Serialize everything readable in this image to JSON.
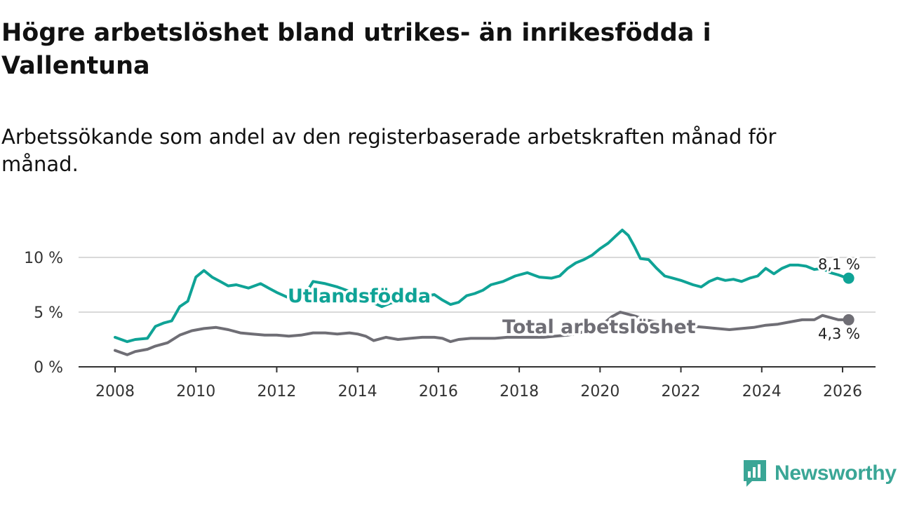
{
  "title": "Högre arbetslöshet bland utrikes- än inrikesfödda i Vallentuna",
  "subtitle": "Arbetssökande som andel av den registerbaserade arbetskraften månad för månad.",
  "logo": {
    "text": "Newsworthy",
    "icon": "newsworthy-logo-icon"
  },
  "colors": {
    "foreign": "#0fa396",
    "total": "#6f6e75",
    "axis": "#333333",
    "grid": "#d9d9d9",
    "brand": "#3aa696"
  },
  "chart_data": {
    "type": "line",
    "ylim": [
      0,
      12.5
    ],
    "xlim": [
      2007.8,
      2027.0
    ],
    "yticks": [
      0,
      5,
      10
    ],
    "ytick_labels": [
      "0 %",
      "5 %",
      "10 %"
    ],
    "xticks": [
      2008,
      2010,
      2012,
      2014,
      2016,
      2018,
      2020,
      2022,
      2024,
      2026
    ],
    "xtick_labels": [
      "2008",
      "2010",
      "2012",
      "2014",
      "2016",
      "2018",
      "2020",
      "2022",
      "2024",
      "2026"
    ],
    "series": [
      {
        "name": "Utlandsfödda",
        "label": "Utlandsfödda",
        "end_label": "8,1 %",
        "x": [
          2008.0,
          2008.3,
          2008.5,
          2008.8,
          2009.0,
          2009.2,
          2009.4,
          2009.6,
          2009.8,
          2010.0,
          2010.2,
          2010.4,
          2010.6,
          2010.8,
          2011.0,
          2011.3,
          2011.6,
          2011.8,
          2012.0,
          2012.3,
          2012.6,
          2012.9,
          2013.2,
          2013.5,
          2013.8,
          2014.0,
          2014.3,
          2014.6,
          2014.8,
          2015.0,
          2015.3,
          2015.6,
          2015.9,
          2016.1,
          2016.3,
          2016.5,
          2016.7,
          2016.9,
          2017.1,
          2017.3,
          2017.6,
          2017.9,
          2018.2,
          2018.5,
          2018.8,
          2019.0,
          2019.2,
          2019.4,
          2019.6,
          2019.8,
          2020.0,
          2020.2,
          2020.4,
          2020.55,
          2020.7,
          2020.85,
          2021.0,
          2021.2,
          2021.4,
          2021.6,
          2021.8,
          2022.0,
          2022.3,
          2022.5,
          2022.7,
          2022.9,
          2023.1,
          2023.3,
          2023.5,
          2023.7,
          2023.9,
          2024.1,
          2024.3,
          2024.5,
          2024.7,
          2024.9,
          2025.1,
          2025.3,
          2025.5,
          2025.7,
          2025.9,
          2026.05,
          2026.15
        ],
        "values": [
          2.7,
          2.3,
          2.5,
          2.6,
          3.7,
          4.0,
          4.2,
          5.5,
          6.0,
          8.2,
          8.8,
          8.2,
          7.8,
          7.4,
          7.5,
          7.2,
          7.6,
          7.2,
          6.8,
          6.3,
          6.0,
          7.8,
          7.6,
          7.3,
          6.9,
          6.3,
          6.0,
          5.5,
          5.8,
          6.0,
          6.2,
          6.4,
          6.6,
          6.1,
          5.7,
          5.9,
          6.5,
          6.7,
          7.0,
          7.5,
          7.8,
          8.3,
          8.6,
          8.2,
          8.1,
          8.3,
          9.0,
          9.5,
          9.8,
          10.2,
          10.8,
          11.3,
          12.0,
          12.5,
          12.0,
          11.0,
          9.9,
          9.8,
          9.0,
          8.3,
          8.1,
          7.9,
          7.5,
          7.3,
          7.8,
          8.1,
          7.9,
          8.0,
          7.8,
          8.1,
          8.3,
          9.0,
          8.5,
          9.0,
          9.3,
          9.3,
          9.2,
          8.9,
          9.0,
          8.6,
          8.4,
          8.2,
          8.1
        ]
      },
      {
        "name": "Total arbetslöshet",
        "label": "Total arbetslöshet",
        "end_label": "4,3 %",
        "x": [
          2008.0,
          2008.3,
          2008.5,
          2008.8,
          2009.0,
          2009.3,
          2009.6,
          2009.9,
          2010.2,
          2010.5,
          2010.8,
          2011.1,
          2011.4,
          2011.7,
          2012.0,
          2012.3,
          2012.6,
          2012.9,
          2013.2,
          2013.5,
          2013.8,
          2014.0,
          2014.2,
          2014.4,
          2014.7,
          2015.0,
          2015.3,
          2015.6,
          2015.9,
          2016.1,
          2016.3,
          2016.5,
          2016.8,
          2017.1,
          2017.4,
          2017.7,
          2018.0,
          2018.3,
          2018.6,
          2018.9,
          2019.2,
          2019.5,
          2019.8,
          2020.1,
          2020.3,
          2020.5,
          2020.7,
          2020.9,
          2021.1,
          2021.4,
          2021.7,
          2022.0,
          2022.3,
          2022.6,
          2022.9,
          2023.2,
          2023.5,
          2023.8,
          2024.1,
          2024.4,
          2024.7,
          2025.0,
          2025.3,
          2025.5,
          2025.7,
          2025.9,
          2026.05,
          2026.15
        ],
        "values": [
          1.5,
          1.1,
          1.4,
          1.6,
          1.9,
          2.2,
          2.9,
          3.3,
          3.5,
          3.6,
          3.4,
          3.1,
          3.0,
          2.9,
          2.9,
          2.8,
          2.9,
          3.1,
          3.1,
          3.0,
          3.1,
          3.0,
          2.8,
          2.4,
          2.7,
          2.5,
          2.6,
          2.7,
          2.7,
          2.6,
          2.3,
          2.5,
          2.6,
          2.6,
          2.6,
          2.7,
          2.7,
          2.7,
          2.7,
          2.8,
          2.9,
          3.1,
          3.5,
          4.0,
          4.6,
          5.0,
          4.8,
          4.6,
          4.3,
          4.1,
          3.9,
          3.8,
          3.7,
          3.6,
          3.5,
          3.4,
          3.5,
          3.6,
          3.8,
          3.9,
          4.1,
          4.3,
          4.3,
          4.7,
          4.5,
          4.3,
          4.3,
          4.3
        ]
      }
    ]
  }
}
